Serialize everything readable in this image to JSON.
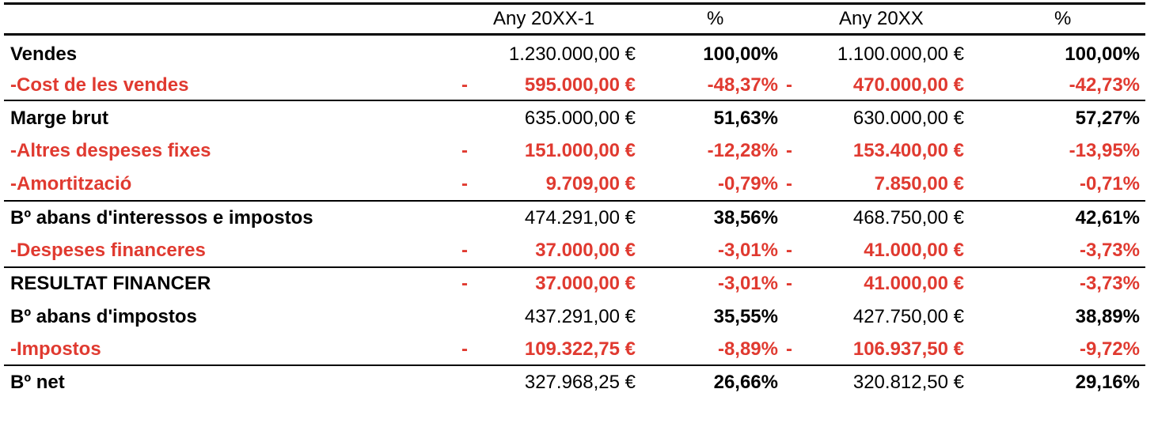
{
  "header": {
    "col1": "Any 20XX-1",
    "col2": "%",
    "col3": "Any 20XX",
    "col4": "%"
  },
  "colors": {
    "negative": "#e03a30",
    "text": "#000000"
  },
  "rows": [
    {
      "label": "Vendes",
      "dash1": "",
      "amt1": "1.230.000,00 €",
      "pct1": "100,00%",
      "dash2": "",
      "amt2": "1.100.000,00 €",
      "pct2": "100,00%"
    },
    {
      "label": "-Cost de les vendes",
      "dash1": "-",
      "amt1": "595.000,00 €",
      "pct1": "-48,37%",
      "dash2": "-",
      "amt2": "470.000,00 €",
      "pct2": "-42,73%"
    },
    {
      "label": "Marge brut",
      "dash1": "",
      "amt1": "635.000,00 €",
      "pct1": "51,63%",
      "dash2": "",
      "amt2": "630.000,00 €",
      "pct2": "57,27%"
    },
    {
      "label": "-Altres despeses fixes",
      "dash1": "-",
      "amt1": "151.000,00 €",
      "pct1": "-12,28%",
      "dash2": "-",
      "amt2": "153.400,00 €",
      "pct2": "-13,95%"
    },
    {
      "label": "-Amortització",
      "dash1": "-",
      "amt1": "9.709,00 €",
      "pct1": "-0,79%",
      "dash2": "-",
      "amt2": "7.850,00 €",
      "pct2": "-0,71%"
    },
    {
      "label": "Bº abans d'interessos e impostos",
      "dash1": "",
      "amt1": "474.291,00 €",
      "pct1": "38,56%",
      "dash2": "",
      "amt2": "468.750,00 €",
      "pct2": "42,61%"
    },
    {
      "label": "-Despeses financeres",
      "dash1": "-",
      "amt1": "37.000,00 €",
      "pct1": "-3,01%",
      "dash2": "-",
      "amt2": "41.000,00 €",
      "pct2": "-3,73%"
    },
    {
      "label": "RESULTAT FINANCER",
      "dash1": "-",
      "amt1": "37.000,00 €",
      "pct1": "-3,01%",
      "dash2": "-",
      "amt2": "41.000,00 €",
      "pct2": "-3,73%"
    },
    {
      "label": "Bº abans d'impostos",
      "dash1": "",
      "amt1": "437.291,00 €",
      "pct1": "35,55%",
      "dash2": "",
      "amt2": "427.750,00 €",
      "pct2": "38,89%"
    },
    {
      "label": "-Impostos",
      "dash1": "-",
      "amt1": "109.322,75 €",
      "pct1": "-8,89%",
      "dash2": "-",
      "amt2": "106.937,50 €",
      "pct2": "-9,72%"
    },
    {
      "label": "Bº net",
      "dash1": "",
      "amt1": "327.968,25 €",
      "pct1": "26,66%",
      "dash2": "",
      "amt2": "320.812,50 €",
      "pct2": "29,16%"
    }
  ]
}
